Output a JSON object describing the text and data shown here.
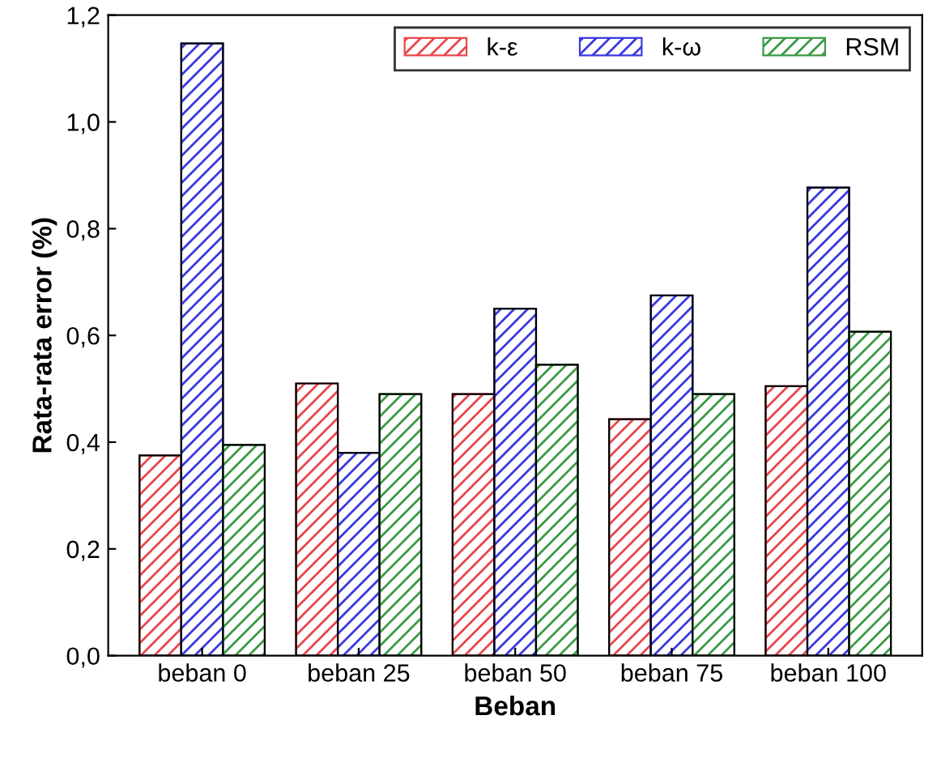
{
  "chart_data": {
    "type": "bar",
    "xlabel": "Beban",
    "ylabel": "Rata-rata error (%)",
    "categories": [
      "beban 0",
      "beban 25",
      "beban 50",
      "beban 75",
      "beban 100"
    ],
    "series": [
      {
        "name": "k-ε",
        "color": "#e8474c",
        "values": [
          0.375,
          0.51,
          0.49,
          0.443,
          0.505
        ]
      },
      {
        "name": "k-ω",
        "color": "#3a3ae0",
        "values": [
          1.147,
          0.38,
          0.65,
          0.675,
          0.877
        ]
      },
      {
        "name": "RSM",
        "color": "#3c9a44",
        "values": [
          0.395,
          0.49,
          0.545,
          0.49,
          0.607
        ]
      }
    ],
    "ylim": [
      0,
      1.2
    ],
    "yticks": [
      {
        "value": 0,
        "label": "0,0"
      },
      {
        "value": 0.2,
        "label": "0,2"
      },
      {
        "value": 0.4,
        "label": "0,4"
      },
      {
        "value": 0.6,
        "label": "0,6"
      },
      {
        "value": 0.8,
        "label": "0,8"
      },
      {
        "value": 1.0,
        "label": "1,0"
      },
      {
        "value": 1.2,
        "label": "1,2"
      }
    ],
    "grid": false,
    "legend": "top right"
  }
}
